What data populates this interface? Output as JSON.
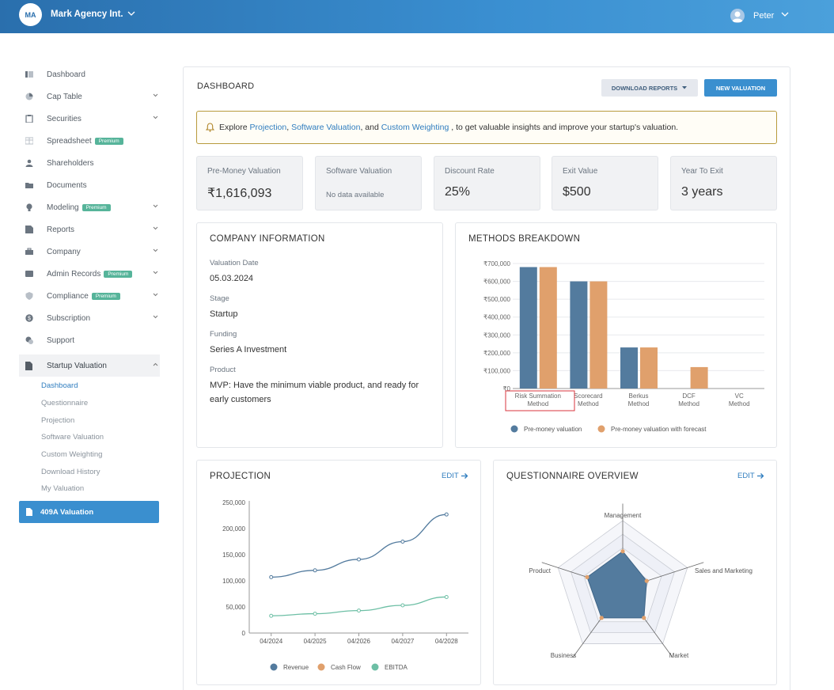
{
  "topbar": {
    "org_initials": "MA",
    "org_name": "Mark Agency Int.",
    "user_name": "Peter"
  },
  "sidebar": {
    "items": [
      {
        "label": "Dashboard",
        "icon": "dashboard-icon",
        "chevron": false
      },
      {
        "label": "Cap Table",
        "icon": "pie-chart-icon",
        "chevron": true
      },
      {
        "label": "Securities",
        "icon": "clipboard-icon",
        "chevron": true
      },
      {
        "label": "Spreadsheet",
        "icon": "table-icon",
        "chevron": false,
        "badge": "Premium"
      },
      {
        "label": "Shareholders",
        "icon": "user-icon",
        "chevron": false
      },
      {
        "label": "Documents",
        "icon": "folder-icon",
        "chevron": false
      },
      {
        "label": "Modeling",
        "icon": "bulb-icon",
        "chevron": true,
        "badge": "Premium"
      },
      {
        "label": "Reports",
        "icon": "report-icon",
        "chevron": true
      },
      {
        "label": "Company",
        "icon": "briefcase-icon",
        "chevron": true
      },
      {
        "label": "Admin Records",
        "icon": "records-icon",
        "chevron": true,
        "badge": "Premium"
      },
      {
        "label": "Compliance",
        "icon": "shield-icon",
        "chevron": true,
        "badge": "Premium"
      },
      {
        "label": "Subscription",
        "icon": "dollar-icon",
        "chevron": true
      },
      {
        "label": "Support",
        "icon": "support-icon",
        "chevron": false
      }
    ],
    "section": {
      "label": "Startup Valuation",
      "icon": "document-icon"
    },
    "sub_items": [
      "Dashboard",
      "Questionnaire",
      "Projection",
      "Software Valuation",
      "Custom Weighting",
      "Download History",
      "My Valuation"
    ],
    "bottom_button": "409A Valuation"
  },
  "header": {
    "title": "DASHBOARD",
    "download_label": "DOWNLOAD REPORTS",
    "new_label": "NEW VALUATION"
  },
  "alert": {
    "prefix": "Explore",
    "link1": "Projection",
    "sep1": " ,",
    "link2": "Software Valuation",
    "sep2": " , and",
    "link3": "Custom Weighting",
    "suffix": " , to get valuable insights and improve your startup's valuation."
  },
  "kpis": [
    {
      "label": "Pre-Money Valuation",
      "value": "₹1,616,093"
    },
    {
      "label": "Software Valuation",
      "value": "No data available"
    },
    {
      "label": "Discount Rate",
      "value": "25%"
    },
    {
      "label": "Exit Value",
      "value": "$500"
    },
    {
      "label": "Year To Exit",
      "value": "3 years"
    }
  ],
  "company": {
    "title": "COMPANY INFORMATION",
    "fields": [
      {
        "label": "Valuation Date",
        "value": "05.03.2024"
      },
      {
        "label": "Stage",
        "value": "Startup"
      },
      {
        "label": "Funding",
        "value": "Series A Investment"
      },
      {
        "label": "Product",
        "value": "MVP: Have the minimum viable product, and ready for early customers"
      }
    ]
  },
  "methods_card": {
    "title": "METHODS BREAKDOWN"
  },
  "projection_card": {
    "title": "PROJECTION",
    "edit": "EDIT"
  },
  "questionnaire_card": {
    "title": "QUESTIONNAIRE OVERVIEW",
    "edit": "EDIT"
  },
  "chart_data": [
    {
      "type": "bar",
      "categories": [
        "Risk Summation Method",
        "Scorecard Method",
        "Berkus Method",
        "DCF Method",
        "VC Method"
      ],
      "series": [
        {
          "name": "Pre-money valuation",
          "values": [
            680000,
            600000,
            230000,
            0,
            0
          ]
        },
        {
          "name": "Pre-money valuation with forecast",
          "values": [
            680000,
            600000,
            230000,
            120000,
            0
          ]
        }
      ],
      "yticks": [
        "₹0",
        "₹100,000",
        "₹200,000",
        "₹300,000",
        "₹400,000",
        "₹500,000",
        "₹600,000",
        "₹700,000"
      ],
      "ylim": [
        0,
        700000
      ],
      "colors": [
        "#537b9e",
        "#e0a06c"
      ],
      "legend_position": "bottom"
    },
    {
      "type": "line",
      "x": [
        "04/2024",
        "04/2025",
        "04/2026",
        "04/2027",
        "04/2028"
      ],
      "series": [
        {
          "name": "Revenue",
          "values": [
            107000,
            120000,
            141000,
            175000,
            227000
          ]
        },
        {
          "name": "Cash Flow",
          "values": [
            null,
            null,
            null,
            null,
            null
          ]
        },
        {
          "name": "EBITDA",
          "values": [
            33000,
            37000,
            43000,
            53000,
            69000
          ]
        }
      ],
      "yticks": [
        "0",
        "50,000",
        "100,000",
        "150,000",
        "200,000",
        "250,000"
      ],
      "ylim": [
        0,
        250000
      ],
      "colors": [
        "#537b9e",
        "#e0a06c",
        "#6dbfa5"
      ],
      "legend_position": "bottom"
    },
    {
      "type": "radar",
      "axes": [
        "Management",
        "Sales and Marketing",
        "Market",
        "Business",
        "Product"
      ],
      "values": [
        0.55,
        0.37,
        0.53,
        0.53,
        0.55
      ],
      "colors": [
        "#537b9e",
        "#e0a06c"
      ]
    }
  ]
}
